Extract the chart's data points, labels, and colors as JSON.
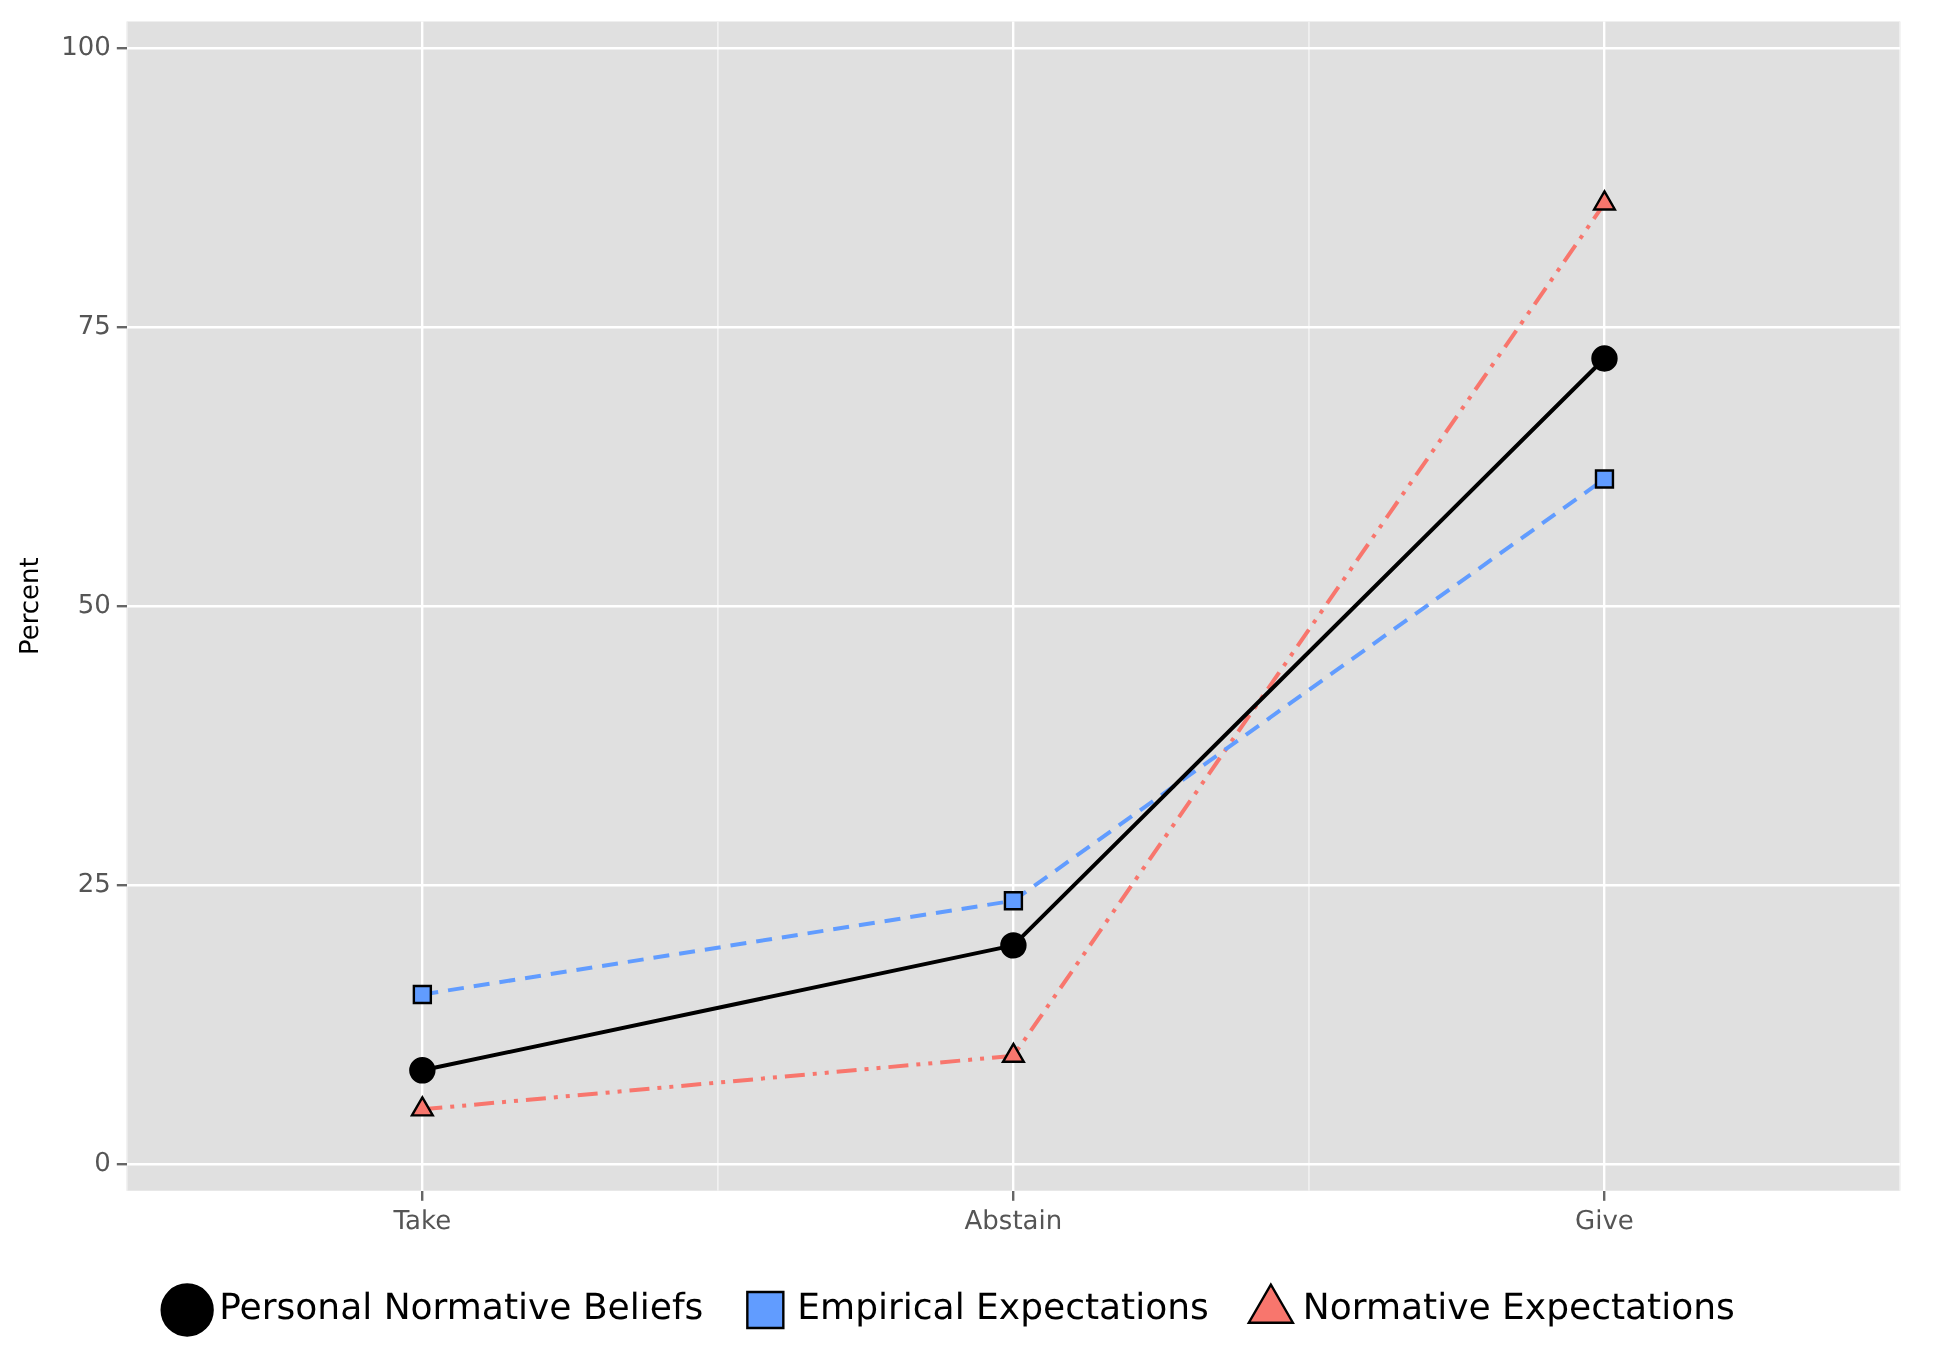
{
  "chart_data": {
    "type": "line",
    "ylabel": "Percent",
    "categories": [
      "Take",
      "Abstain",
      "Give"
    ],
    "series": [
      {
        "name": "Personal Normative Beliefs",
        "color": "#000000",
        "marker": "circle",
        "line_style": "solid",
        "values": [
          8.4,
          19.6,
          72.2
        ]
      },
      {
        "name": "Empirical Expectations",
        "color": "#619cff",
        "marker": "square",
        "line_style": "dashed",
        "values": [
          15.2,
          23.6,
          61.4
        ]
      },
      {
        "name": "Normative Expectations",
        "color": "#f8766d",
        "marker": "triangle",
        "line_style": "dotted",
        "values": [
          4.9,
          9.7,
          86.1
        ]
      }
    ],
    "ylim": [
      -2.4,
      102.4
    ],
    "yticks": [
      0,
      25,
      50,
      75,
      100
    ],
    "grid": true,
    "legend": "bottom"
  }
}
